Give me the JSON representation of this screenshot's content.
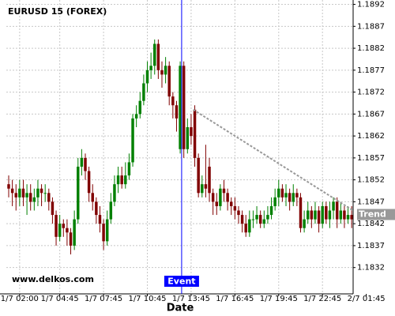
{
  "chart_data": {
    "type": "candlestick",
    "title": "EURUSD 15 (FOREX)",
    "x_label": "Date",
    "watermark": "www.delkos.com",
    "up_color": "#008000",
    "down_color": "#800000",
    "grid": true,
    "xlim": [
      -0.65,
      94.4
    ],
    "xticks": [
      {
        "value": 3,
        "label": "1/7 02:00"
      },
      {
        "value": 14,
        "label": "1/7 04:45"
      },
      {
        "value": 26,
        "label": "1/7 07:45"
      },
      {
        "value": 38,
        "label": "1/7 10:45"
      },
      {
        "value": 50,
        "label": "1/7 13:45"
      },
      {
        "value": 62,
        "label": "1/7 16:45"
      },
      {
        "value": 74,
        "label": "1/7 19:45"
      },
      {
        "value": 86,
        "label": "1/7 22:45"
      },
      {
        "value": 98,
        "label": "2/7 01:45"
      }
    ],
    "ylim": [
      1.1826,
      1.1893
    ],
    "yticks": [
      1.1832,
      1.1837,
      1.1842,
      1.1847,
      1.1852,
      1.1857,
      1.1862,
      1.1867,
      1.1872,
      1.1877,
      1.1882,
      1.1887,
      1.1892
    ],
    "open": [
      1.1851,
      1.185,
      1.1849,
      1.1848,
      1.185,
      1.1848,
      1.1849,
      1.1847,
      1.1848,
      1.185,
      1.1849,
      1.1849,
      1.1847,
      1.1844,
      1.1839,
      1.1842,
      1.1841,
      1.184,
      1.1837,
      1.1843,
      1.1855,
      1.1857,
      1.1854,
      1.1849,
      1.1847,
      1.1844,
      1.1842,
      1.1838,
      1.1843,
      1.1847,
      1.1851,
      1.1853,
      1.1851,
      1.1853,
      1.1856,
      1.1866,
      1.1867,
      1.187,
      1.1874,
      1.1877,
      1.1878,
      1.1883,
      1.1877,
      1.1876,
      1.1878,
      1.1871,
      1.1869,
      1.1859,
      1.1878,
      1.1859,
      1.1864,
      1.1868,
      1.1857,
      1.1849,
      1.1851,
      1.1855,
      1.1849,
      1.1847,
      1.1846,
      1.185,
      1.1849,
      1.1847,
      1.1846,
      1.1845,
      1.1844,
      1.1842,
      1.184,
      1.1843,
      1.1843,
      1.1844,
      1.1842,
      1.1843,
      1.1844,
      1.1846,
      1.1848,
      1.185,
      1.1848,
      1.1849,
      1.1847,
      1.1849,
      1.1848,
      1.1841,
      1.1843,
      1.1845,
      1.1843,
      1.1845,
      1.1842,
      1.1846,
      1.1843,
      1.1845,
      1.1847,
      1.1843,
      1.1845,
      1.1843,
      1.1844
    ],
    "high": [
      1.1853,
      1.1852,
      1.1851,
      1.1852,
      1.1852,
      1.1851,
      1.1851,
      1.185,
      1.1852,
      1.1851,
      1.1851,
      1.185,
      1.1848,
      1.1845,
      1.1844,
      1.1843,
      1.1843,
      1.1841,
      1.1845,
      1.1857,
      1.1859,
      1.1858,
      1.1855,
      1.1851,
      1.1848,
      1.1846,
      1.1843,
      1.1845,
      1.1849,
      1.1853,
      1.1855,
      1.1855,
      1.1856,
      1.1858,
      1.1867,
      1.1869,
      1.1872,
      1.1876,
      1.1879,
      1.1881,
      1.1884,
      1.1884,
      1.1879,
      1.188,
      1.1879,
      1.1872,
      1.187,
      1.1879,
      1.1879,
      1.1866,
      1.1867,
      1.1869,
      1.1858,
      1.1853,
      1.186,
      1.1857,
      1.185,
      1.1849,
      1.1851,
      1.1852,
      1.185,
      1.1848,
      1.1848,
      1.1846,
      1.1845,
      1.1844,
      1.1845,
      1.1845,
      1.1846,
      1.1845,
      1.1845,
      1.1846,
      1.1848,
      1.185,
      1.1852,
      1.1851,
      1.1851,
      1.185,
      1.1851,
      1.185,
      1.1849,
      1.1845,
      1.1847,
      1.1846,
      1.1847,
      1.1846,
      1.1847,
      1.1847,
      1.1847,
      1.1848,
      1.1848,
      1.1847,
      1.1846,
      1.1846,
      1.1846
    ],
    "low": [
      1.1848,
      1.1846,
      1.1845,
      1.1846,
      1.1846,
      1.1844,
      1.1845,
      1.1845,
      1.1846,
      1.1846,
      1.1847,
      1.1845,
      1.1842,
      1.1837,
      1.1838,
      1.1839,
      1.1837,
      1.1835,
      1.1836,
      1.1842,
      1.1853,
      1.1852,
      1.1847,
      1.1845,
      1.1842,
      1.184,
      1.1836,
      1.1837,
      1.1842,
      1.1846,
      1.1849,
      1.185,
      1.185,
      1.1852,
      1.1855,
      1.1864,
      1.1866,
      1.1869,
      1.1872,
      1.1875,
      1.1876,
      1.1875,
      1.1873,
      1.1874,
      1.1869,
      1.1866,
      1.1863,
      1.1858,
      1.1857,
      1.1858,
      1.186,
      1.1855,
      1.1848,
      1.1848,
      1.1848,
      1.1847,
      1.1844,
      1.1844,
      1.1845,
      1.1847,
      1.1845,
      1.1844,
      1.1843,
      1.1842,
      1.184,
      1.1839,
      1.1839,
      1.1841,
      1.1842,
      1.1841,
      1.1841,
      1.1842,
      1.1843,
      1.1845,
      1.1846,
      1.1847,
      1.1846,
      1.1845,
      1.1846,
      1.1846,
      1.184,
      1.184,
      1.1842,
      1.1841,
      1.1842,
      1.184,
      1.1841,
      1.1842,
      1.1841,
      1.1843,
      1.1841,
      1.1842,
      1.1841,
      1.1842,
      1.1841
    ],
    "close": [
      1.185,
      1.1849,
      1.1848,
      1.185,
      1.1848,
      1.1849,
      1.1847,
      1.1848,
      1.185,
      1.1849,
      1.1849,
      1.1847,
      1.1844,
      1.1839,
      1.1842,
      1.1841,
      1.184,
      1.1837,
      1.1843,
      1.1855,
      1.1857,
      1.1854,
      1.1849,
      1.1847,
      1.1844,
      1.1842,
      1.1838,
      1.1843,
      1.1847,
      1.1851,
      1.1853,
      1.1851,
      1.1853,
      1.1856,
      1.1866,
      1.1867,
      1.187,
      1.1874,
      1.1877,
      1.1878,
      1.1883,
      1.1877,
      1.1876,
      1.1878,
      1.1871,
      1.1869,
      1.1866,
      1.1878,
      1.1859,
      1.1864,
      1.1862,
      1.1857,
      1.1849,
      1.1851,
      1.185,
      1.1849,
      1.1847,
      1.1846,
      1.185,
      1.1849,
      1.1847,
      1.1846,
      1.1845,
      1.1844,
      1.1842,
      1.184,
      1.1843,
      1.1843,
      1.1844,
      1.1842,
      1.1843,
      1.1844,
      1.1846,
      1.1848,
      1.185,
      1.1848,
      1.1849,
      1.1847,
      1.1849,
      1.1848,
      1.1841,
      1.1843,
      1.1845,
      1.1843,
      1.1845,
      1.1842,
      1.1846,
      1.1843,
      1.1845,
      1.1847,
      1.1843,
      1.1845,
      1.1843,
      1.1844,
      1.1843
    ],
    "event": {
      "text": "Event",
      "x": 47.4,
      "color": "#0000ff"
    },
    "trend": {
      "text": "Trend",
      "x0": 50.6,
      "y0": 1.1868,
      "x1": 94.4,
      "y1": 1.1845,
      "color": "#999999"
    }
  }
}
